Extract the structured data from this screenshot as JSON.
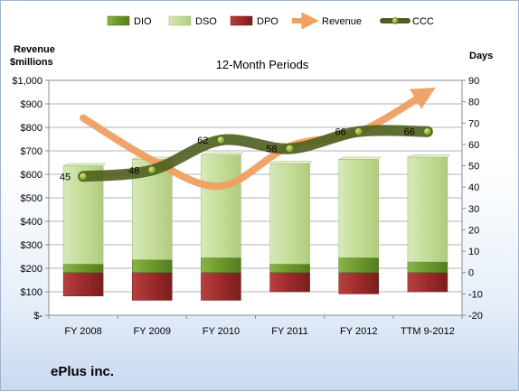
{
  "company": "ePlus inc.",
  "chart_data": {
    "type": "bar",
    "title": "12-Month Periods",
    "left_axis_label": [
      "Revenue",
      "$millions"
    ],
    "right_axis_label": "Days",
    "categories": [
      "FY 2008",
      "FY 2009",
      "FY 2010",
      "FY 2011",
      "FY 2012",
      "TTM 9-2012"
    ],
    "left_ticks": [
      "$-",
      "$100",
      "$200",
      "$300",
      "$400",
      "$500",
      "$600",
      "$700",
      "$800",
      "$900",
      "$1,000"
    ],
    "right_ticks": [
      "-20",
      "-10",
      "0",
      "10",
      "20",
      "30",
      "40",
      "50",
      "60",
      "70",
      "80",
      "90"
    ],
    "left_ylim": [
      0,
      1000
    ],
    "right_ylim": [
      -20,
      90
    ],
    "legend": [
      "DIO",
      "DSO",
      "DPO",
      "Revenue",
      "CCC"
    ],
    "legend_position": "top",
    "series": [
      {
        "name": "DIO",
        "axis": "right",
        "kind": "stacked-bar",
        "color": "#6f9a2e",
        "values": [
          4,
          6,
          7,
          4,
          7,
          5
        ]
      },
      {
        "name": "DSO",
        "axis": "right",
        "kind": "stacked-bar",
        "color": "#c8dea0",
        "values": [
          46,
          47,
          48,
          47,
          46,
          49
        ]
      },
      {
        "name": "DPO",
        "axis": "right",
        "kind": "bar-below-zero",
        "color": "#9b2b2b",
        "values": [
          -11,
          -13,
          -13,
          -9,
          -10,
          -9
        ]
      },
      {
        "name": "Revenue",
        "axis": "left",
        "kind": "line",
        "color": "#f0a060",
        "values": [
          840,
          660,
          550,
          720,
          780,
          950
        ]
      },
      {
        "name": "CCC",
        "axis": "right",
        "kind": "line",
        "color": "#4e5e1e",
        "values": [
          45,
          48,
          62,
          58,
          66,
          66
        ],
        "labels": [
          "45",
          "48",
          "62",
          "58",
          "66",
          "66"
        ]
      }
    ]
  }
}
